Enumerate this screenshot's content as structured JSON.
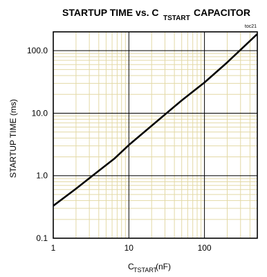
{
  "chart_data": {
    "type": "line",
    "title_main": "STARTUP TIME vs. C",
    "title_sub": "TSTART",
    "title_tail": " CAPACITOR",
    "tag": "toc21",
    "ylabel": "STARTUP TIME (ms)",
    "xlabel_main": "C",
    "xlabel_sub": "TSTART",
    "xlabel_tail": " (nF)",
    "xscale": "log",
    "yscale": "log",
    "xlim": [
      1,
      500
    ],
    "ylim": [
      0.1,
      200
    ],
    "x_ticks": [
      1,
      10,
      100
    ],
    "x_tick_labels": [
      "1",
      "10",
      "100"
    ],
    "y_ticks": [
      0.1,
      1,
      10,
      100
    ],
    "y_tick_labels": [
      "0.1",
      "1.0",
      "10.0",
      "100.0"
    ],
    "grid": true,
    "series": [
      {
        "x": [
          1,
          2,
          4,
          6.5,
          10,
          20,
          50,
          100,
          200,
          500
        ],
        "y": [
          0.33,
          0.62,
          1.2,
          1.9,
          3.1,
          6.3,
          16,
          31,
          65,
          185
        ]
      }
    ]
  }
}
